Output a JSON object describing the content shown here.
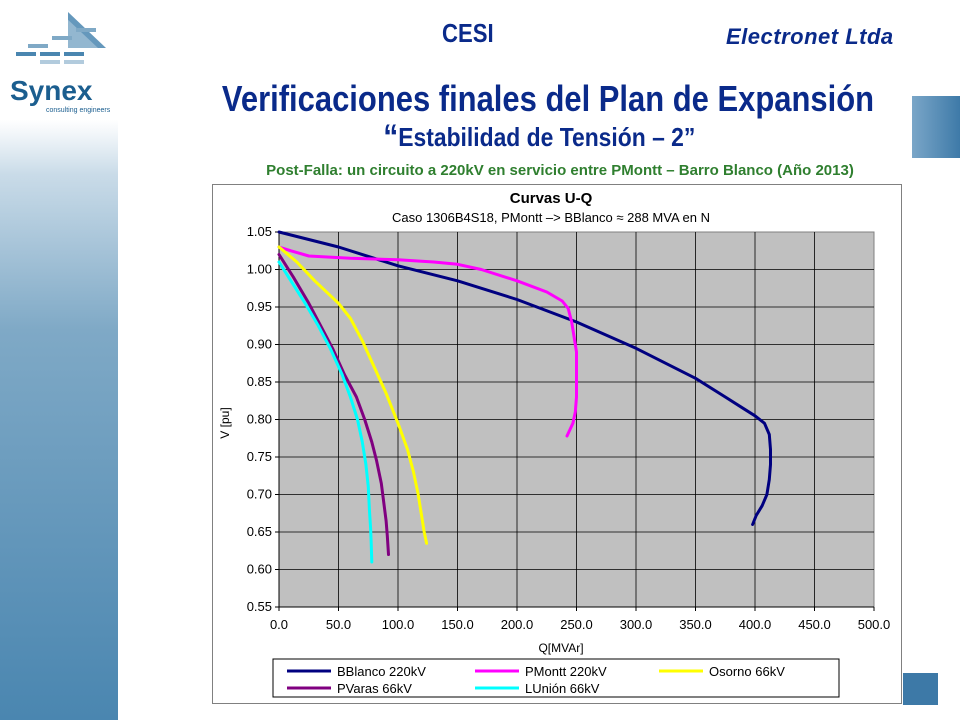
{
  "header": {
    "center_label": "CESI",
    "right_label": "Electronet Ltda",
    "logo_text": "Synex",
    "logo_subtext": "consulting engineers"
  },
  "slide": {
    "title": "Verificaciones finales del Plan de Expansión",
    "subtitle_quote_open": "“",
    "subtitle_text": "Estabilidad de Tensión – 2”",
    "caption": "Post-Falla: un circuito a 220kV en servicio entre PMontt – Barro Blanco (Año 2013)"
  },
  "colors": {
    "title": "#0a2a8a",
    "caption": "#2f7f2f",
    "plot_bg": "#c0c0c0",
    "sidebar": "#4a86b0"
  },
  "chart_data": {
    "type": "line",
    "title": "Curvas U-Q",
    "subtitle": "Caso 1306B4S18, PMontt –> BBlanco ≈ 288 MVA en N",
    "xlabel": "Q[MVAr]",
    "ylabel": "V [pu]",
    "xlim": [
      0,
      500
    ],
    "ylim": [
      0.55,
      1.05
    ],
    "xticks": [
      "0.0",
      "50.0",
      "100.0",
      "150.0",
      "200.0",
      "250.0",
      "300.0",
      "350.0",
      "400.0",
      "450.0",
      "500.0"
    ],
    "yticks": [
      "0.55",
      "0.60",
      "0.65",
      "0.70",
      "0.75",
      "0.80",
      "0.85",
      "0.90",
      "0.95",
      "1.00",
      "1.05"
    ],
    "grid": true,
    "legend_position": "bottom",
    "series": [
      {
        "name": "BBlanco 220kV",
        "color": "#000080",
        "points": [
          [
            0,
            1.05
          ],
          [
            50,
            1.03
          ],
          [
            100,
            1.005
          ],
          [
            150,
            0.985
          ],
          [
            200,
            0.96
          ],
          [
            250,
            0.93
          ],
          [
            300,
            0.895
          ],
          [
            350,
            0.855
          ],
          [
            375,
            0.83
          ],
          [
            390,
            0.815
          ],
          [
            400,
            0.805
          ],
          [
            408,
            0.795
          ],
          [
            412,
            0.78
          ],
          [
            413,
            0.76
          ],
          [
            413,
            0.74
          ],
          [
            412,
            0.72
          ],
          [
            410,
            0.7
          ],
          [
            406,
            0.685
          ],
          [
            401,
            0.672
          ],
          [
            398,
            0.66
          ]
        ]
      },
      {
        "name": "PMontt 220kV",
        "color": "#ff00ff",
        "points": [
          [
            0,
            1.03
          ],
          [
            10,
            1.025
          ],
          [
            25,
            1.018
          ],
          [
            60,
            1.015
          ],
          [
            100,
            1.013
          ],
          [
            130,
            1.01
          ],
          [
            150,
            1.007
          ],
          [
            170,
            1.0
          ],
          [
            200,
            0.985
          ],
          [
            225,
            0.97
          ],
          [
            238,
            0.958
          ],
          [
            243,
            0.948
          ],
          [
            246,
            0.93
          ],
          [
            248,
            0.91
          ],
          [
            250,
            0.89
          ],
          [
            250,
            0.86
          ],
          [
            250,
            0.83
          ],
          [
            249,
            0.81
          ],
          [
            247,
            0.795
          ],
          [
            242,
            0.778
          ]
        ]
      },
      {
        "name": "Osorno 66kV",
        "color": "#ffff00",
        "points": [
          [
            0,
            1.03
          ],
          [
            15,
            1.01
          ],
          [
            30,
            0.985
          ],
          [
            50,
            0.955
          ],
          [
            60,
            0.935
          ],
          [
            70,
            0.905
          ],
          [
            80,
            0.87
          ],
          [
            90,
            0.835
          ],
          [
            100,
            0.795
          ],
          [
            108,
            0.76
          ],
          [
            113,
            0.73
          ],
          [
            117,
            0.7
          ],
          [
            120,
            0.67
          ],
          [
            122,
            0.65
          ],
          [
            124,
            0.635
          ]
        ]
      },
      {
        "name": "PVaras 66kV",
        "color": "#800080",
        "points": [
          [
            0,
            1.02
          ],
          [
            12,
            0.99
          ],
          [
            25,
            0.955
          ],
          [
            35,
            0.925
          ],
          [
            45,
            0.895
          ],
          [
            55,
            0.86
          ],
          [
            65,
            0.83
          ],
          [
            72,
            0.8
          ],
          [
            78,
            0.77
          ],
          [
            82,
            0.745
          ],
          [
            86,
            0.715
          ],
          [
            88,
            0.69
          ],
          [
            90,
            0.665
          ],
          [
            91,
            0.645
          ],
          [
            92,
            0.62
          ]
        ]
      },
      {
        "name": "LUnión 66kV",
        "color": "#00ffff",
        "points": [
          [
            0,
            1.01
          ],
          [
            10,
            0.985
          ],
          [
            22,
            0.955
          ],
          [
            33,
            0.925
          ],
          [
            43,
            0.895
          ],
          [
            53,
            0.86
          ],
          [
            60,
            0.83
          ],
          [
            66,
            0.8
          ],
          [
            70,
            0.77
          ],
          [
            73,
            0.74
          ],
          [
            75,
            0.71
          ],
          [
            76,
            0.68
          ],
          [
            77,
            0.655
          ],
          [
            77.5,
            0.635
          ],
          [
            78,
            0.61
          ]
        ]
      }
    ]
  }
}
